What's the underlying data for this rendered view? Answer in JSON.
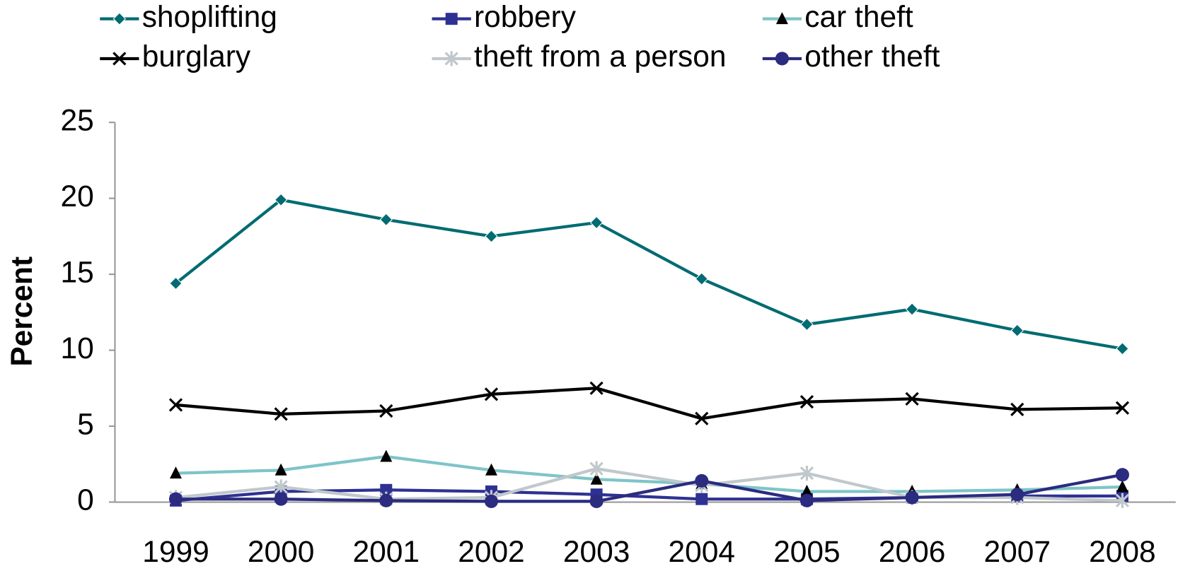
{
  "chart_data": {
    "type": "line",
    "y_label": "Percent",
    "categories": [
      "1999",
      "2000",
      "2001",
      "2002",
      "2003",
      "2004",
      "2005",
      "2006",
      "2007",
      "2008"
    ],
    "series": [
      {
        "name": "shoplifting",
        "color": "#006b72",
        "marker": "diamond",
        "values": [
          14.4,
          19.9,
          18.6,
          17.5,
          18.4,
          14.7,
          11.7,
          12.7,
          11.3,
          10.1
        ]
      },
      {
        "name": "robbery",
        "color": "#2e3192",
        "marker": "square",
        "values": [
          0.1,
          0.7,
          0.8,
          0.7,
          0.5,
          0.2,
          0.2,
          0.3,
          0.4,
          0.4
        ]
      },
      {
        "name": "car theft",
        "color": "#7fc4c8",
        "marker": "triangle",
        "marker_color": "#000000",
        "values": [
          1.9,
          2.1,
          3.0,
          2.1,
          1.5,
          1.2,
          0.7,
          0.7,
          0.8,
          1.0
        ]
      },
      {
        "name": "burglary",
        "color": "#000000",
        "marker": "x",
        "values": [
          6.4,
          5.8,
          6.0,
          7.1,
          7.5,
          5.5,
          6.6,
          6.8,
          6.1,
          6.2
        ]
      },
      {
        "name": "theft from a person",
        "color": "#c0c8cc",
        "marker": "star",
        "values": [
          0.3,
          1.0,
          0.2,
          0.3,
          2.2,
          1.1,
          1.9,
          0.3,
          0.3,
          0.1
        ]
      },
      {
        "name": "other theft",
        "color": "#2b2b80",
        "marker": "circle",
        "values": [
          0.2,
          0.2,
          0.1,
          0.05,
          0.05,
          1.4,
          0.1,
          0.3,
          0.5,
          1.8
        ]
      }
    ],
    "ylim": [
      0,
      25
    ],
    "yticks": [
      0,
      5,
      10,
      15,
      20,
      25
    ],
    "grid": false,
    "legend": "top"
  }
}
